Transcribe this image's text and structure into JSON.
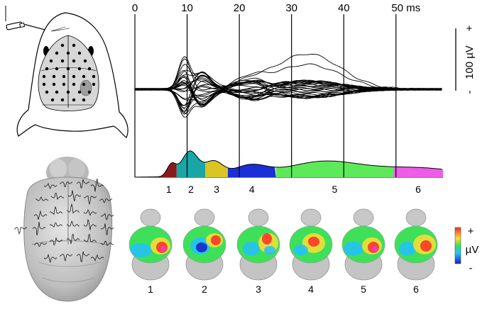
{
  "time_axis": {
    "ticks": [
      {
        "t": 0,
        "label": "0"
      },
      {
        "t": 10,
        "label": "10"
      },
      {
        "t": 20,
        "label": "20"
      },
      {
        "t": 30,
        "label": "30"
      },
      {
        "t": 40,
        "label": "40"
      },
      {
        "t": 50,
        "label": "50 ms"
      }
    ],
    "range_ms": [
      0,
      59
    ]
  },
  "scale_bar": {
    "label": "100 µV",
    "plus": "+",
    "minus": "-"
  },
  "segments": [
    {
      "label": "1",
      "start_ms": 5,
      "end_ms": 8,
      "color": "#8b1a1a"
    },
    {
      "label": "2",
      "start_ms": 8,
      "end_ms": 13.5,
      "color": "#19a6a6"
    },
    {
      "label": "3",
      "start_ms": 13.5,
      "end_ms": 17.8,
      "color": "#d9c625"
    },
    {
      "label": "4",
      "start_ms": 17.8,
      "end_ms": 27,
      "color": "#1a2fd6"
    },
    {
      "label": "5",
      "start_ms": 27,
      "end_ms": 49.5,
      "color": "#5ee95a"
    },
    {
      "label": "6",
      "start_ms": 49.5,
      "end_ms": 59,
      "color": "#ee5ce8"
    }
  ],
  "maps": [
    {
      "label": "1"
    },
    {
      "label": "2"
    },
    {
      "label": "3"
    },
    {
      "label": "4"
    },
    {
      "label": "5"
    },
    {
      "label": "6"
    }
  ],
  "colorbar": {
    "plus": "+",
    "unit": "µV",
    "minus": "-",
    "colors": [
      "#ff2a2a",
      "#ffdd33",
      "#3ee05a",
      "#22c0ff",
      "#1a1acc"
    ]
  },
  "icons": [
    "electrode-icon",
    "mouse-head-diagram",
    "mouse-brain-model"
  ]
}
